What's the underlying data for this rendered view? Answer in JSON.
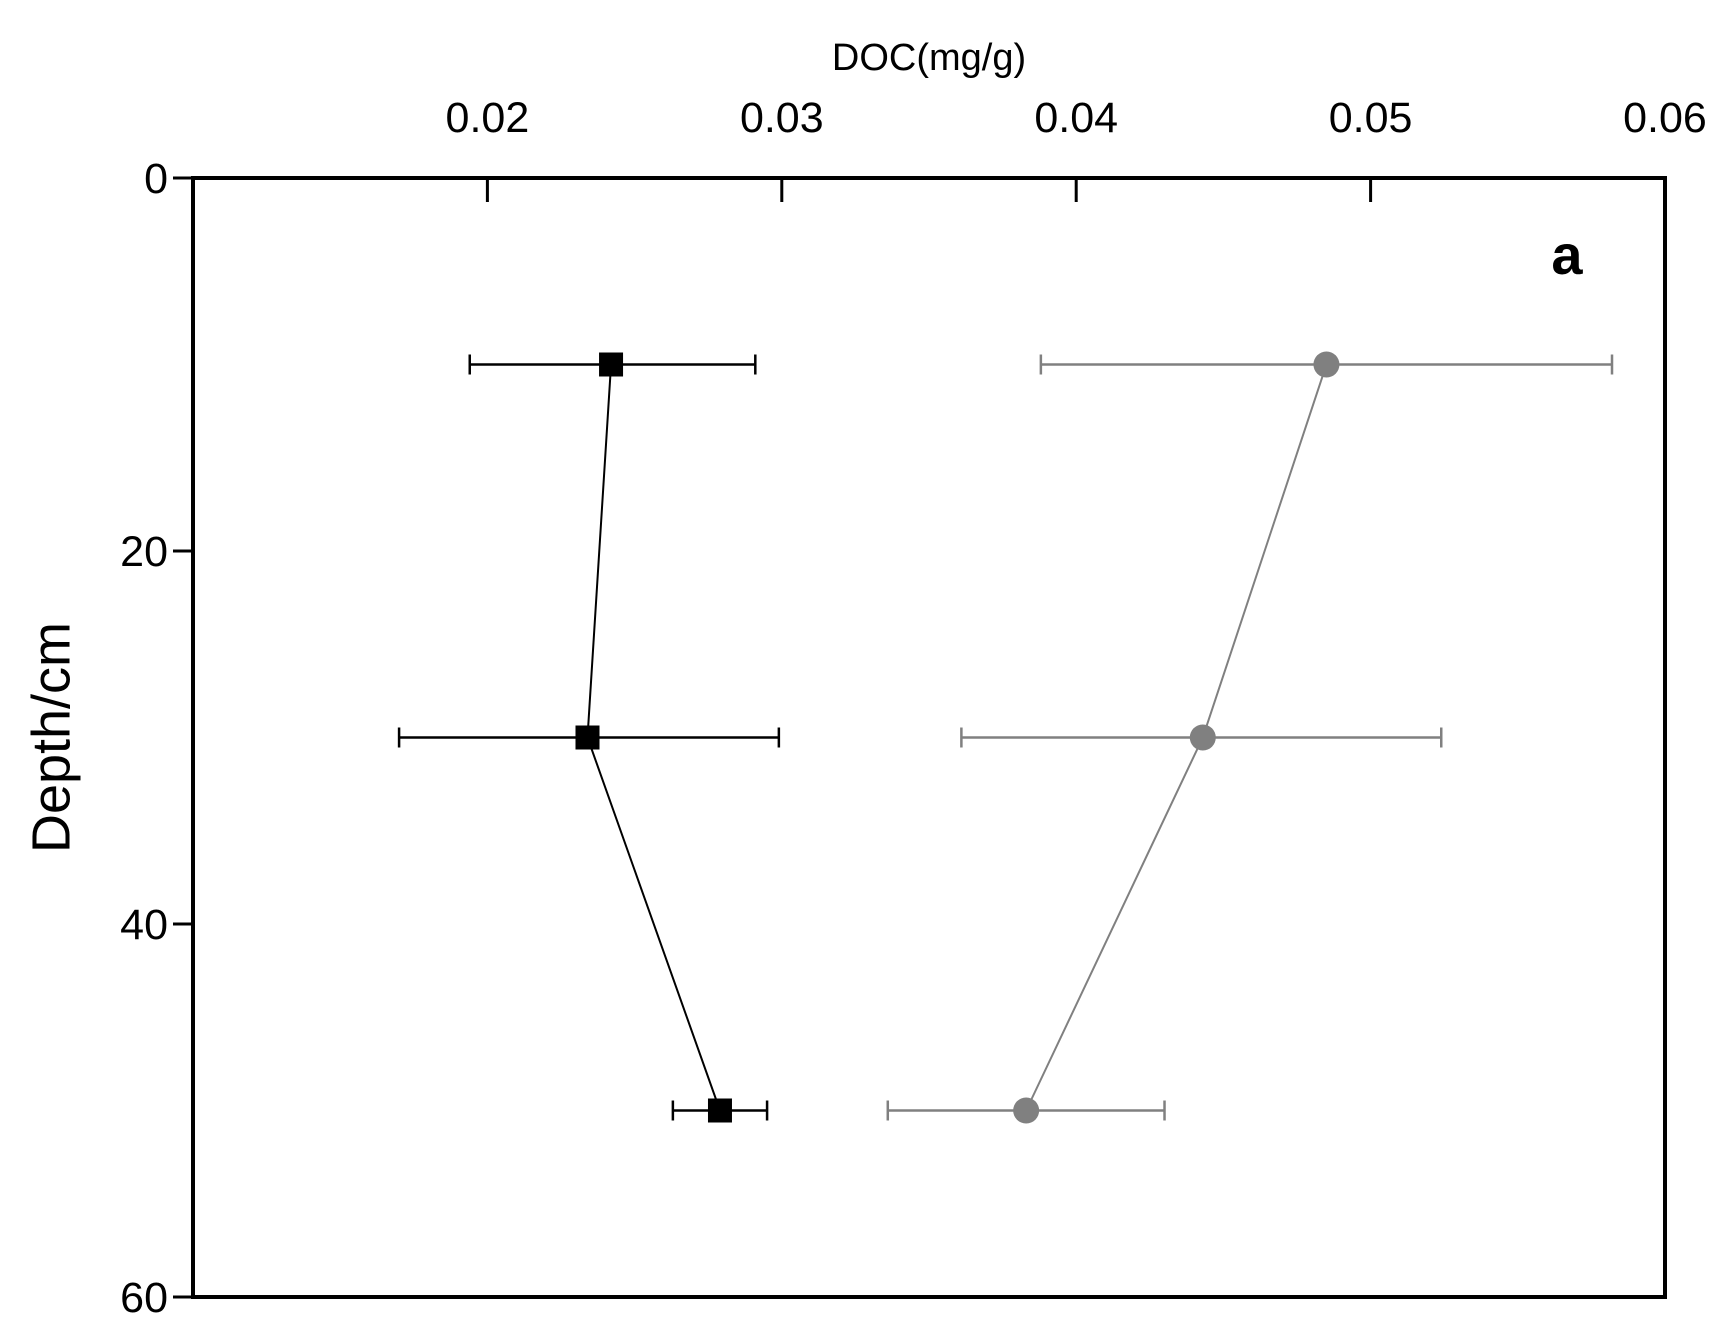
{
  "chart_data": {
    "type": "scatter",
    "title": "",
    "xlabel": "DOC(mg/g)",
    "ylabel": "Depth/cm",
    "panel_label": "a",
    "x_axis_position": "top",
    "y_axis_inverted": true,
    "xlim": [
      0.01,
      0.06
    ],
    "ylim": [
      0,
      60
    ],
    "x_ticks": [
      0.02,
      0.03,
      0.04,
      0.05,
      0.06
    ],
    "x_tick_labels": [
      "0.02",
      "0.03",
      "0.04",
      "0.05",
      "0.06"
    ],
    "y_ticks": [
      0,
      20,
      40,
      60
    ],
    "y_tick_labels": [
      "0",
      "20",
      "40",
      "60"
    ],
    "grid": false,
    "legend": "none",
    "series": [
      {
        "marker": "square",
        "color": "#000000",
        "points": [
          {
            "x": 0.0242,
            "y": 10,
            "xerr_low": 0.0194,
            "xerr_high": 0.0291
          },
          {
            "x": 0.0234,
            "y": 30,
            "xerr_low": 0.017,
            "xerr_high": 0.0299
          },
          {
            "x": 0.0279,
            "y": 50,
            "xerr_low": 0.0263,
            "xerr_high": 0.0295
          }
        ]
      },
      {
        "marker": "circle",
        "color": "#808080",
        "points": [
          {
            "x": 0.0485,
            "y": 10,
            "xerr_low": 0.0388,
            "xerr_high": 0.0582
          },
          {
            "x": 0.0443,
            "y": 30,
            "xerr_low": 0.0361,
            "xerr_high": 0.0524
          },
          {
            "x": 0.0383,
            "y": 50,
            "xerr_low": 0.0336,
            "xerr_high": 0.043
          }
        ]
      }
    ]
  }
}
